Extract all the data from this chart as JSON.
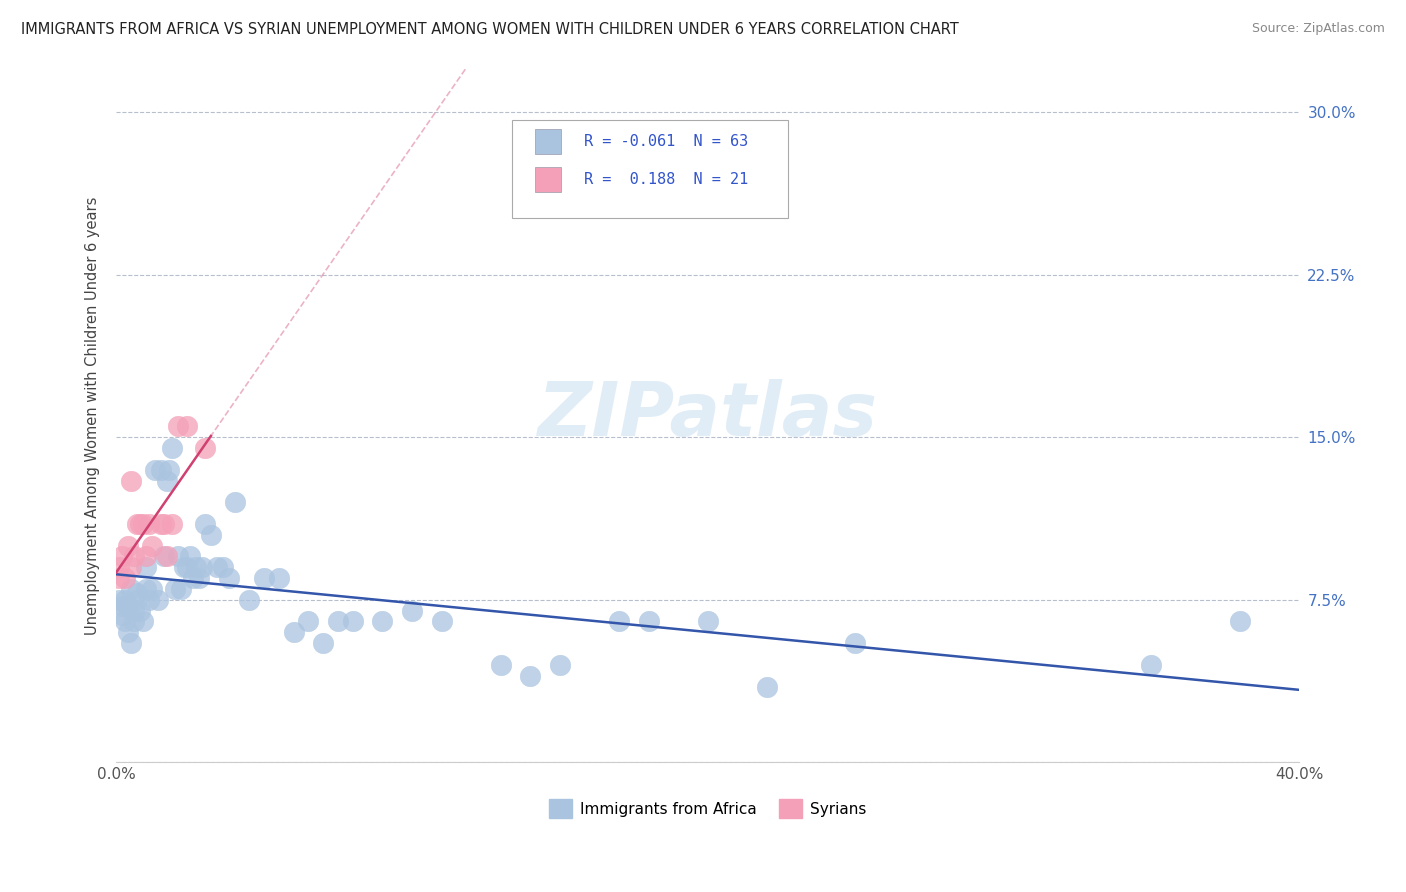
{
  "title": "IMMIGRANTS FROM AFRICA VS SYRIAN UNEMPLOYMENT AMONG WOMEN WITH CHILDREN UNDER 6 YEARS CORRELATION CHART",
  "source": "Source: ZipAtlas.com",
  "ylabel": "Unemployment Among Women with Children Under 6 years",
  "xlim": [
    0.0,
    0.4
  ],
  "ylim": [
    0.0,
    0.32
  ],
  "yticks": [
    0.0,
    0.075,
    0.15,
    0.225,
    0.3
  ],
  "ytick_labels": [
    "",
    "7.5%",
    "15.0%",
    "22.5%",
    "30.0%"
  ],
  "background_color": "#ffffff",
  "grid_color": "#b0b8c8",
  "watermark": "ZIPatlas",
  "legend_labels": [
    "Immigrants from Africa",
    "Syrians"
  ],
  "series": [
    {
      "name": "Immigrants from Africa",
      "R": -0.061,
      "N": 63,
      "dot_color": "#aac4e0",
      "line_color": "#3355aa",
      "x": [
        0.001,
        0.002,
        0.002,
        0.003,
        0.003,
        0.004,
        0.004,
        0.005,
        0.005,
        0.006,
        0.006,
        0.007,
        0.007,
        0.008,
        0.009,
        0.01,
        0.01,
        0.011,
        0.012,
        0.013,
        0.014,
        0.015,
        0.016,
        0.017,
        0.018,
        0.019,
        0.02,
        0.021,
        0.022,
        0.023,
        0.024,
        0.025,
        0.026,
        0.027,
        0.028,
        0.029,
        0.03,
        0.032,
        0.034,
        0.036,
        0.038,
        0.04,
        0.045,
        0.05,
        0.055,
        0.06,
        0.065,
        0.07,
        0.075,
        0.08,
        0.09,
        0.1,
        0.11,
        0.13,
        0.14,
        0.15,
        0.17,
        0.18,
        0.2,
        0.22,
        0.25,
        0.35,
        0.38
      ],
      "y": [
        0.075,
        0.072,
        0.068,
        0.065,
        0.075,
        0.06,
        0.072,
        0.055,
        0.08,
        0.065,
        0.07,
        0.075,
        0.078,
        0.07,
        0.065,
        0.08,
        0.09,
        0.075,
        0.08,
        0.135,
        0.075,
        0.135,
        0.095,
        0.13,
        0.135,
        0.145,
        0.08,
        0.095,
        0.08,
        0.09,
        0.09,
        0.095,
        0.085,
        0.09,
        0.085,
        0.09,
        0.11,
        0.105,
        0.09,
        0.09,
        0.085,
        0.12,
        0.075,
        0.085,
        0.085,
        0.06,
        0.065,
        0.055,
        0.065,
        0.065,
        0.065,
        0.07,
        0.065,
        0.045,
        0.04,
        0.045,
        0.065,
        0.065,
        0.065,
        0.035,
        0.055,
        0.045,
        0.065
      ]
    },
    {
      "name": "Syrians",
      "R": 0.188,
      "N": 21,
      "dot_color": "#f4a0b8",
      "line_color": "#d04070",
      "x": [
        0.001,
        0.001,
        0.002,
        0.003,
        0.004,
        0.005,
        0.005,
        0.006,
        0.007,
        0.008,
        0.009,
        0.01,
        0.011,
        0.012,
        0.015,
        0.016,
        0.017,
        0.019,
        0.021,
        0.024,
        0.03
      ],
      "y": [
        0.09,
        0.085,
        0.095,
        0.085,
        0.1,
        0.09,
        0.13,
        0.095,
        0.11,
        0.11,
        0.11,
        0.095,
        0.11,
        0.1,
        0.11,
        0.11,
        0.095,
        0.11,
        0.155,
        0.155,
        0.145
      ]
    }
  ]
}
